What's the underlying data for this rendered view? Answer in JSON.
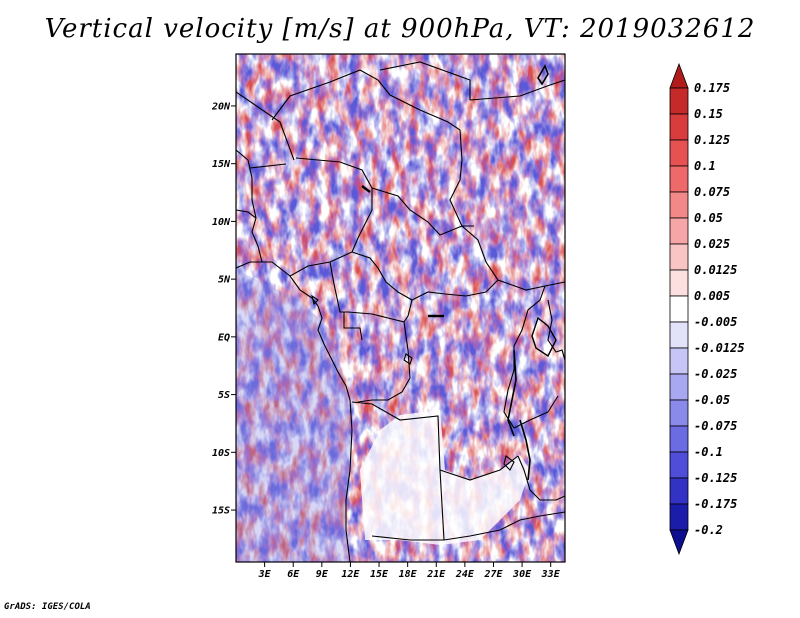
{
  "title": "Vertical velocity [m/s] at 900hPa, VT: 2019032612",
  "footer": "GrADS: IGES/COLA",
  "chart_data": {
    "type": "heatmap",
    "variable": "Vertical velocity",
    "units": "m/s",
    "level": "900hPa",
    "valid_time": "2019032612",
    "lon_range": [
      0,
      34.5
    ],
    "lat_range": [
      -19.5,
      24.5
    ],
    "x_ticks": [
      "3E",
      "6E",
      "9E",
      "12E",
      "15E",
      "18E",
      "21E",
      "24E",
      "27E",
      "30E",
      "33E"
    ],
    "x_tick_values": [
      3,
      6,
      9,
      12,
      15,
      18,
      21,
      24,
      27,
      30,
      33
    ],
    "y_ticks": [
      "20N",
      "15N",
      "10N",
      "5N",
      "EQ",
      "5S",
      "10S",
      "15S"
    ],
    "y_tick_values": [
      20,
      15,
      10,
      5,
      0,
      -5,
      -10,
      -15
    ],
    "colorbar_labels": [
      "0.175",
      "0.15",
      "0.125",
      "0.1",
      "0.075",
      "0.05",
      "0.025",
      "0.0125",
      "0.005",
      "-0.005",
      "-0.0125",
      "-0.025",
      "-0.05",
      "-0.075",
      "-0.1",
      "-0.125",
      "-0.175",
      "-0.2"
    ],
    "colorbar_colors": [
      "#b01c1c",
      "#c42a2a",
      "#d83c3c",
      "#e65252",
      "#ee6a6a",
      "#f28888",
      "#f6a6a6",
      "#f9c4c4",
      "#fce0e0",
      "#ffffff",
      "#e2e2fa",
      "#c6c6f6",
      "#a8a8f0",
      "#8a8aea",
      "#6c6ce2",
      "#4e4ed8",
      "#3232c4",
      "#1c1caa",
      "#0e0e90"
    ],
    "colorbar_extends": "both"
  }
}
